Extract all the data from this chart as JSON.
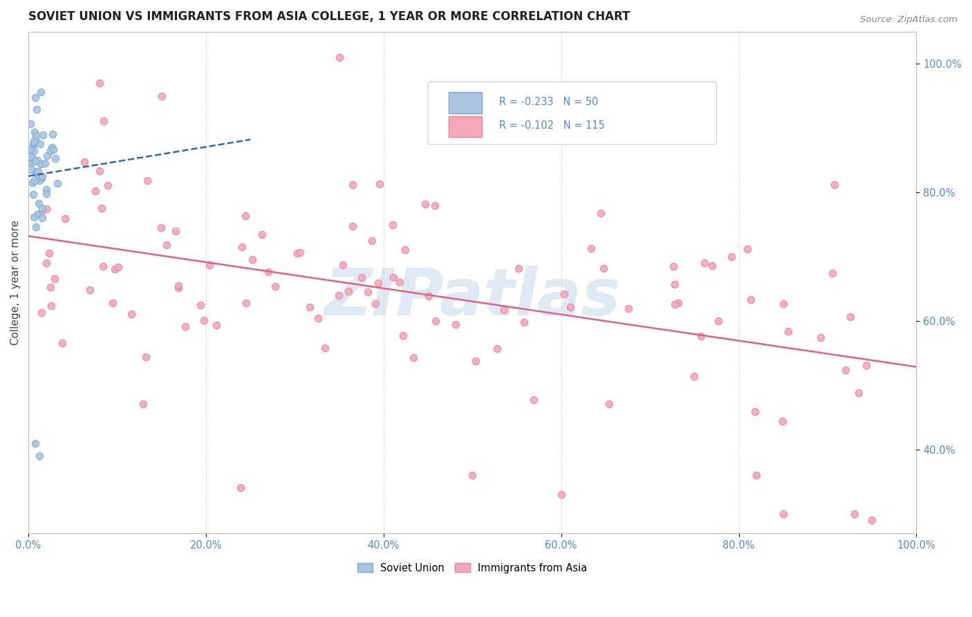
{
  "title": "SOVIET UNION VS IMMIGRANTS FROM ASIA COLLEGE, 1 YEAR OR MORE CORRELATION CHART",
  "source_text": "Source: ZipAtlas.com",
  "ylabel": "College, 1 year or more",
  "xlim": [
    0.0,
    1.0
  ],
  "ylim": [
    0.27,
    1.05
  ],
  "xticklabels": [
    "0.0%",
    "20.0%",
    "40.0%",
    "60.0%",
    "80.0%",
    "100.0%"
  ],
  "xticks": [
    0.0,
    0.2,
    0.4,
    0.6,
    0.8,
    1.0
  ],
  "right_yticklabels": [
    "40.0%",
    "60.0%",
    "80.0%",
    "100.0%"
  ],
  "right_yticks": [
    0.4,
    0.6,
    0.8,
    1.0
  ],
  "watermark": "ZIPatlas",
  "legend_R1": "-0.233",
  "legend_N1": "50",
  "legend_R2": "-0.102",
  "legend_N2": "115",
  "soviet_color": "#aac4e0",
  "asia_color": "#f4a8ba",
  "soviet_edge": "#7aaad0",
  "asia_edge": "#e880a0",
  "trendline_soviet_color": "#3366aa",
  "trendline_asia_color": "#e06080",
  "background_color": "#ffffff",
  "grid_color": "#d8d8d8",
  "legend_text_color": "#5588cc",
  "title_color": "#222222",
  "axis_text_color": "#444444"
}
